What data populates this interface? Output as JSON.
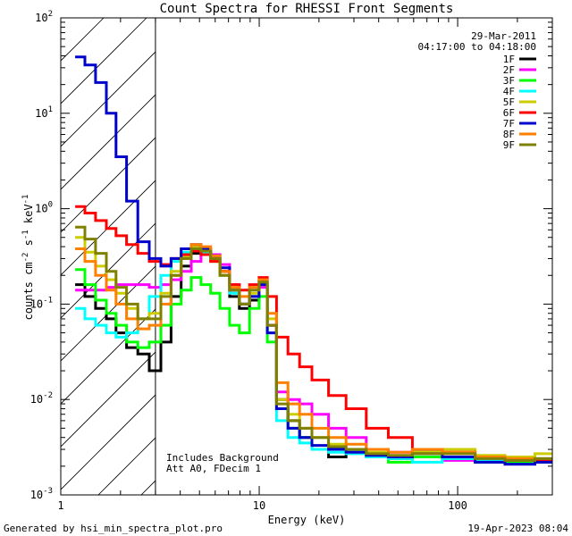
{
  "chart_data": {
    "type": "line",
    "title": "Count Spectra for RHESSI Front Segments",
    "xlabel": "Energy (keV)",
    "ylabel_main": "counts cm",
    "ylabel_exp1": "-2",
    "ylabel_mid": " s",
    "ylabel_exp2": "-1",
    "ylabel_mid2": " keV",
    "ylabel_exp3": "-1",
    "xscale": "log",
    "yscale": "log",
    "xlim": [
      1,
      300
    ],
    "ylim": [
      0.001,
      100
    ],
    "x_ticks": [
      {
        "value": 1,
        "label": "1"
      },
      {
        "value": 10,
        "label": "10"
      },
      {
        "value": 100,
        "label": "100"
      }
    ],
    "y_ticks": [
      {
        "value": 0.001,
        "base": "10",
        "exp": "-3"
      },
      {
        "value": 0.01,
        "base": "10",
        "exp": "-2"
      },
      {
        "value": 0.1,
        "base": "10",
        "exp": "-1"
      },
      {
        "value": 1,
        "base": "10",
        "exp": "0"
      },
      {
        "value": 10,
        "base": "10",
        "exp": "1"
      },
      {
        "value": 100,
        "base": "10",
        "exp": "2"
      }
    ],
    "hatch_region_kev": [
      1,
      3
    ],
    "legend_date": "29-Mar-2011",
    "legend_time": "04:17:00 to 04:18:00",
    "legend_position": "top-right",
    "annotation_lines": [
      "Includes Background",
      "Att A0, FDecim 1"
    ],
    "series": [
      {
        "name": "1F",
        "color": "#000000",
        "x": [
          1.25,
          1.4,
          1.6,
          1.8,
          2.0,
          2.3,
          2.6,
          3.0,
          3.4,
          3.8,
          4.3,
          4.8,
          5.4,
          6.0,
          6.7,
          7.5,
          8.4,
          9.5,
          10.5,
          11.5,
          13,
          15,
          17,
          20,
          25,
          30,
          40,
          50,
          70,
          100,
          150,
          200,
          300
        ],
        "y": [
          0.16,
          0.12,
          0.09,
          0.07,
          0.05,
          0.035,
          0.03,
          0.02,
          0.04,
          0.12,
          0.25,
          0.34,
          0.35,
          0.3,
          0.22,
          0.12,
          0.09,
          0.11,
          0.16,
          0.06,
          0.01,
          0.006,
          0.004,
          0.003,
          0.0025,
          0.003,
          0.0026,
          0.0024,
          0.0028,
          0.0025,
          0.0022,
          0.0022,
          0.0023
        ]
      },
      {
        "name": "2F",
        "color": "#ff00ff",
        "x": [
          1.25,
          1.4,
          1.6,
          1.8,
          2.0,
          2.3,
          2.6,
          3.0,
          3.4,
          3.8,
          4.3,
          4.8,
          5.4,
          6.0,
          6.7,
          7.5,
          8.4,
          9.5,
          10.5,
          11.5,
          13,
          15,
          17,
          20,
          25,
          30,
          40,
          50,
          70,
          100,
          150,
          200,
          300
        ],
        "y": [
          0.14,
          0.14,
          0.14,
          0.15,
          0.16,
          0.16,
          0.16,
          0.15,
          0.16,
          0.18,
          0.22,
          0.28,
          0.35,
          0.33,
          0.26,
          0.16,
          0.1,
          0.12,
          0.15,
          0.06,
          0.012,
          0.01,
          0.009,
          0.007,
          0.005,
          0.004,
          0.003,
          0.0028,
          0.0025,
          0.0023,
          0.0022,
          0.0021,
          0.0022
        ]
      },
      {
        "name": "3F",
        "color": "#00ff00",
        "x": [
          1.25,
          1.4,
          1.6,
          1.8,
          2.0,
          2.3,
          2.6,
          3.0,
          3.4,
          3.8,
          4.3,
          4.8,
          5.4,
          6.0,
          6.7,
          7.5,
          8.4,
          9.5,
          10.5,
          11.5,
          13,
          15,
          17,
          20,
          25,
          30,
          40,
          50,
          70,
          100,
          150,
          200,
          300
        ],
        "y": [
          0.23,
          0.16,
          0.11,
          0.08,
          0.06,
          0.04,
          0.035,
          0.04,
          0.06,
          0.1,
          0.14,
          0.19,
          0.16,
          0.13,
          0.09,
          0.06,
          0.05,
          0.09,
          0.12,
          0.04,
          0.008,
          0.005,
          0.004,
          0.003,
          0.003,
          0.0028,
          0.0025,
          0.0022,
          0.0025,
          0.0024,
          0.0022,
          0.0022,
          0.0022
        ]
      },
      {
        "name": "4F",
        "color": "#00ffff",
        "x": [
          1.25,
          1.4,
          1.6,
          1.8,
          2.0,
          2.3,
          2.6,
          3.0,
          3.4,
          3.8,
          4.3,
          4.8,
          5.4,
          6.0,
          6.7,
          7.5,
          8.4,
          9.5,
          10.5,
          11.5,
          13,
          15,
          17,
          20,
          25,
          30,
          40,
          50,
          70,
          100,
          150,
          200,
          300
        ],
        "y": [
          0.09,
          0.07,
          0.06,
          0.05,
          0.045,
          0.05,
          0.07,
          0.12,
          0.2,
          0.28,
          0.35,
          0.38,
          0.35,
          0.28,
          0.2,
          0.13,
          0.1,
          0.12,
          0.16,
          0.05,
          0.006,
          0.004,
          0.0035,
          0.003,
          0.0028,
          0.0027,
          0.0025,
          0.0024,
          0.0022,
          0.0024,
          0.0023,
          0.0023,
          0.0024
        ]
      },
      {
        "name": "5F",
        "color": "#cccc00",
        "x": [
          1.25,
          1.4,
          1.6,
          1.8,
          2.0,
          2.3,
          2.6,
          3.0,
          3.4,
          3.8,
          4.3,
          4.8,
          5.4,
          6.0,
          6.7,
          7.5,
          8.4,
          9.5,
          10.5,
          11.5,
          13,
          15,
          17,
          20,
          25,
          30,
          40,
          50,
          70,
          100,
          150,
          200,
          300
        ],
        "y": [
          0.5,
          0.35,
          0.25,
          0.18,
          0.13,
          0.09,
          0.07,
          0.08,
          0.13,
          0.22,
          0.32,
          0.4,
          0.36,
          0.28,
          0.2,
          0.14,
          0.1,
          0.13,
          0.18,
          0.07,
          0.01,
          0.007,
          0.005,
          0.004,
          0.0034,
          0.003,
          0.0028,
          0.0025,
          0.0028,
          0.003,
          0.0026,
          0.0025,
          0.0027
        ]
      },
      {
        "name": "6F",
        "color": "#ff0000",
        "x": [
          1.25,
          1.4,
          1.6,
          1.8,
          2.0,
          2.3,
          2.6,
          3.0,
          3.4,
          3.8,
          4.3,
          4.8,
          5.4,
          6.0,
          6.7,
          7.5,
          8.4,
          9.5,
          10.5,
          11.5,
          13,
          15,
          17,
          20,
          25,
          30,
          40,
          50,
          70,
          100,
          150,
          200,
          300
        ],
        "y": [
          1.05,
          0.9,
          0.75,
          0.62,
          0.52,
          0.42,
          0.34,
          0.28,
          0.26,
          0.3,
          0.33,
          0.36,
          0.33,
          0.28,
          0.22,
          0.16,
          0.14,
          0.16,
          0.19,
          0.12,
          0.045,
          0.03,
          0.022,
          0.016,
          0.011,
          0.008,
          0.005,
          0.004,
          0.003,
          0.0028,
          0.0025,
          0.0023,
          0.0023
        ]
      },
      {
        "name": "7F",
        "color": "#0000cc",
        "x": [
          1.25,
          1.4,
          1.6,
          1.8,
          2.0,
          2.3,
          2.6,
          3.0,
          3.4,
          3.8,
          4.3,
          4.8,
          5.4,
          6.0,
          6.7,
          7.5,
          8.4,
          9.5,
          10.5,
          11.5,
          13,
          15,
          17,
          20,
          25,
          30,
          40,
          50,
          70,
          100,
          150,
          200,
          300
        ],
        "y": [
          39,
          32,
          21,
          10,
          3.5,
          1.2,
          0.45,
          0.3,
          0.25,
          0.3,
          0.38,
          0.42,
          0.38,
          0.32,
          0.24,
          0.14,
          0.1,
          0.12,
          0.16,
          0.05,
          0.008,
          0.005,
          0.004,
          0.0033,
          0.003,
          0.0028,
          0.0026,
          0.0025,
          0.0027,
          0.0025,
          0.0022,
          0.0021,
          0.0022
        ]
      },
      {
        "name": "8F",
        "color": "#ff8000",
        "x": [
          1.25,
          1.4,
          1.6,
          1.8,
          2.0,
          2.3,
          2.6,
          3.0,
          3.4,
          3.8,
          4.3,
          4.8,
          5.4,
          6.0,
          6.7,
          7.5,
          8.4,
          9.5,
          10.5,
          11.5,
          13,
          15,
          17,
          20,
          25,
          30,
          40,
          50,
          70,
          100,
          150,
          200,
          300
        ],
        "y": [
          0.38,
          0.28,
          0.2,
          0.14,
          0.1,
          0.07,
          0.055,
          0.06,
          0.1,
          0.2,
          0.3,
          0.42,
          0.4,
          0.32,
          0.22,
          0.15,
          0.12,
          0.15,
          0.18,
          0.08,
          0.015,
          0.009,
          0.007,
          0.005,
          0.004,
          0.0034,
          0.003,
          0.0028,
          0.003,
          0.0028,
          0.0025,
          0.0024,
          0.0024
        ]
      },
      {
        "name": "9F",
        "color": "#808000",
        "x": [
          1.25,
          1.4,
          1.6,
          1.8,
          2.0,
          2.3,
          2.6,
          3.0,
          3.4,
          3.8,
          4.3,
          4.8,
          5.4,
          6.0,
          6.7,
          7.5,
          8.4,
          9.5,
          10.5,
          11.5,
          13,
          15,
          17,
          20,
          25,
          30,
          40,
          50,
          70,
          100,
          150,
          200,
          300
        ],
        "y": [
          0.64,
          0.48,
          0.34,
          0.22,
          0.15,
          0.1,
          0.07,
          0.07,
          0.12,
          0.2,
          0.3,
          0.38,
          0.36,
          0.3,
          0.2,
          0.14,
          0.1,
          0.14,
          0.17,
          0.06,
          0.009,
          0.006,
          0.005,
          0.004,
          0.0032,
          0.003,
          0.0027,
          0.0026,
          0.0027,
          0.0027,
          0.0024,
          0.0023,
          0.0024
        ]
      }
    ]
  },
  "footer": {
    "left": "Generated by hsi_min_spectra_plot.pro",
    "right": "19-Apr-2023 08:04"
  }
}
